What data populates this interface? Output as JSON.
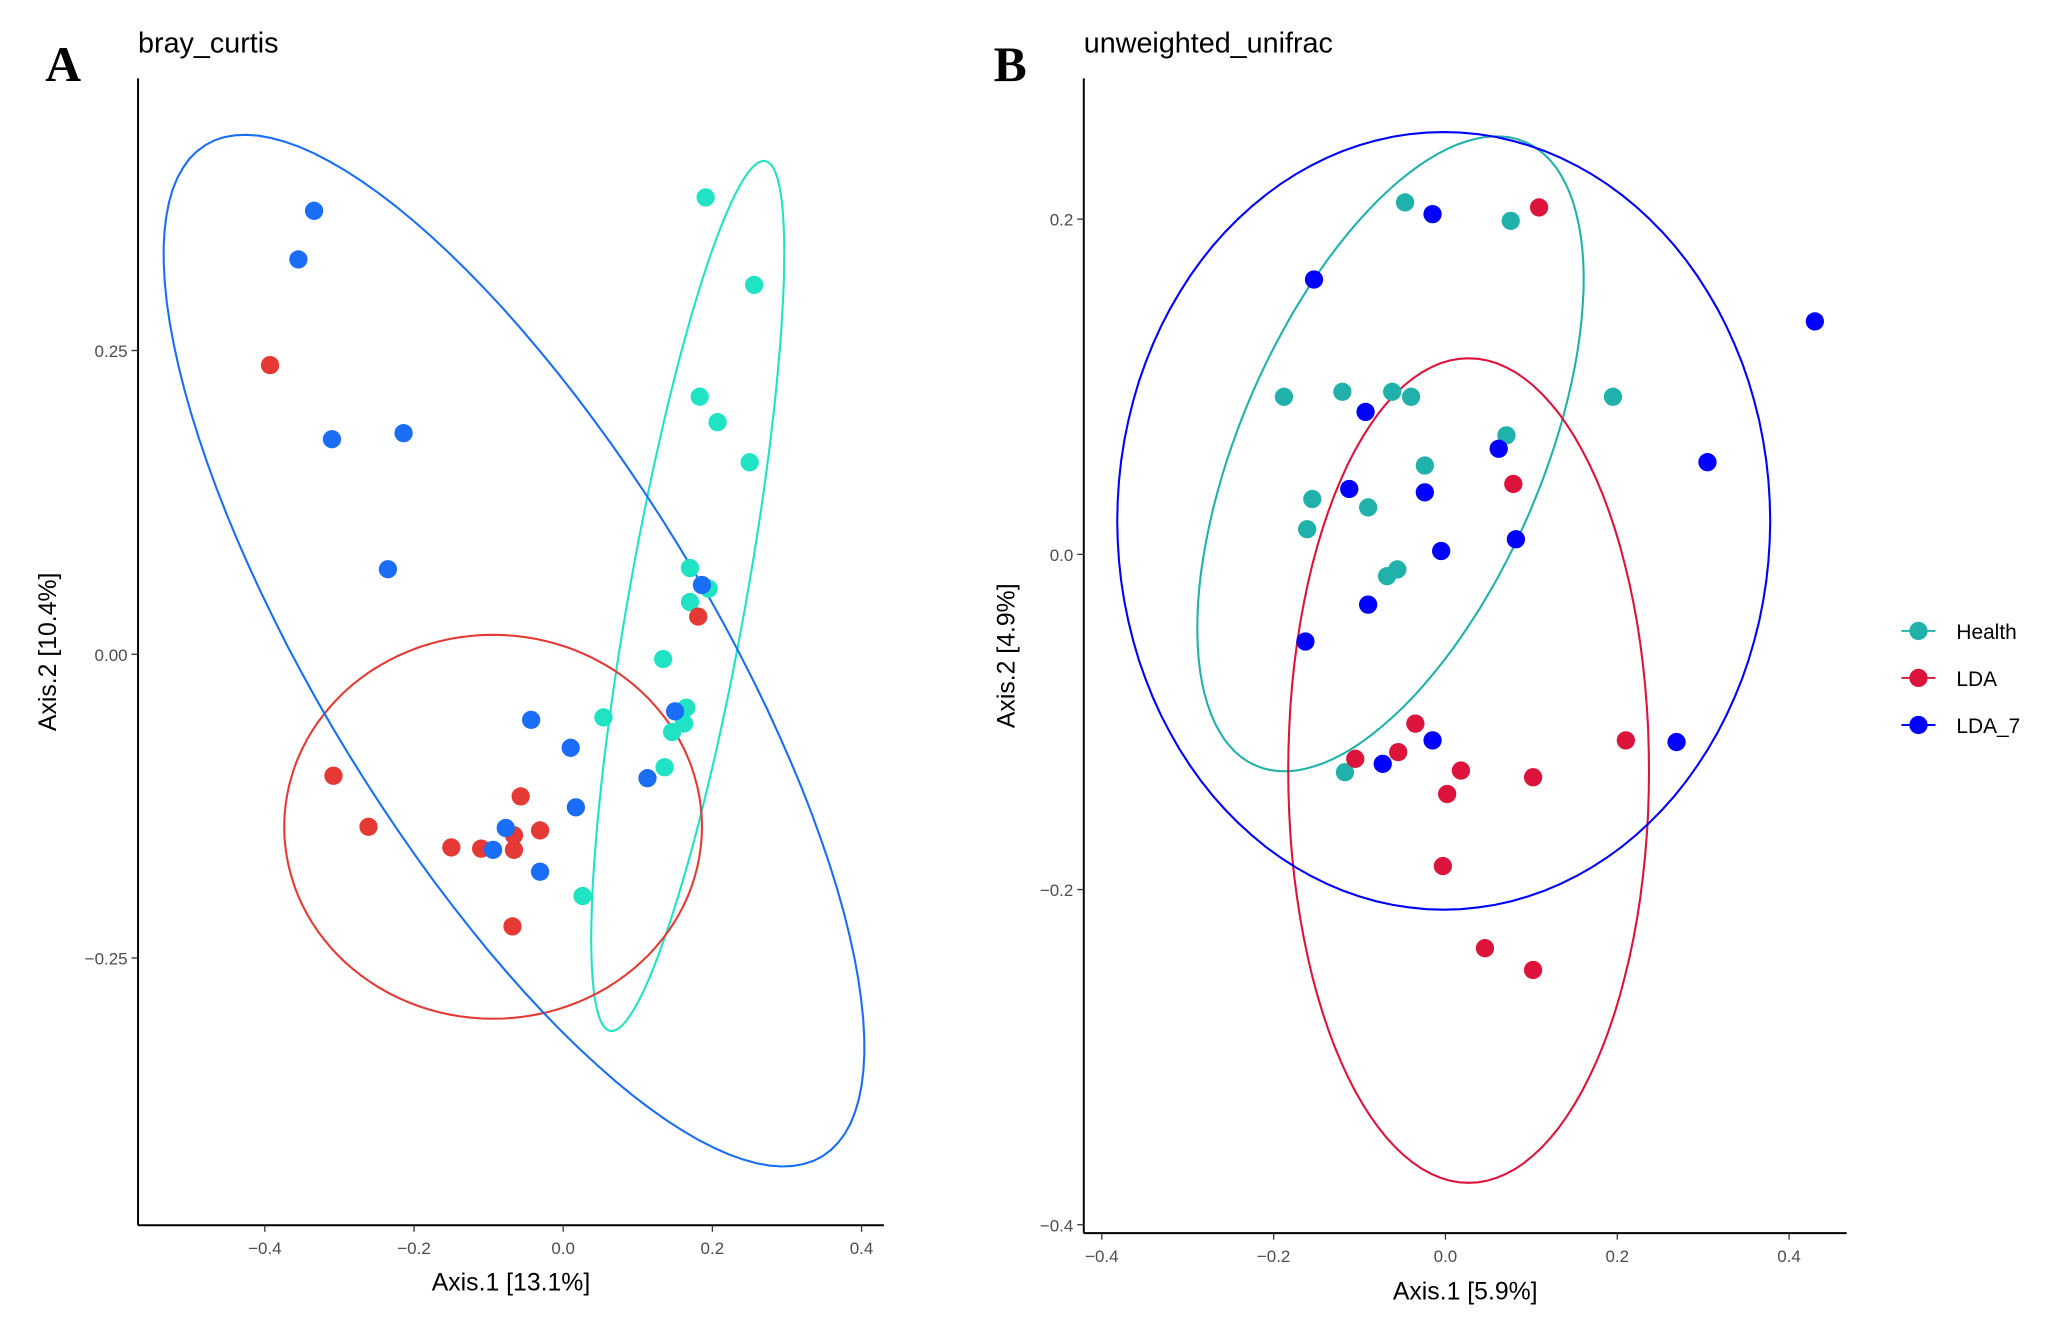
{
  "chart_data": [
    {
      "type": "scatter",
      "panel_label": "A",
      "title": "bray_curtis",
      "xlabel": "Axis.1 [13.1%]",
      "ylabel": "Axis.2 [10.4%]",
      "xticks": [
        -0.4,
        -0.2,
        0.0,
        0.2,
        0.4
      ],
      "xtick_labels": [
        "−0.4",
        "−0.2",
        "0.0",
        "0.2",
        "0.4"
      ],
      "yticks": [
        0.25,
        0.0,
        -0.25
      ],
      "ytick_labels": [
        "0.25",
        "0.00",
        "−0.25"
      ],
      "xlim": [
        -0.57,
        0.43
      ],
      "ylim": [
        -0.47,
        0.474
      ],
      "grid": false,
      "series": [
        {
          "name": "Health",
          "color": "#1fe3c3",
          "points": [
            [
              0.191,
              0.376
            ],
            [
              0.256,
              0.304
            ],
            [
              0.183,
              0.212
            ],
            [
              0.207,
              0.191
            ],
            [
              0.25,
              0.158
            ],
            [
              0.17,
              0.071
            ],
            [
              0.195,
              0.054
            ],
            [
              0.17,
              0.043
            ],
            [
              0.134,
              -0.004
            ],
            [
              0.165,
              -0.044
            ],
            [
              0.162,
              -0.057
            ],
            [
              0.146,
              -0.064
            ],
            [
              0.136,
              -0.093
            ],
            [
              0.054,
              -0.052
            ],
            [
              0.026,
              -0.199
            ]
          ],
          "ellipse": {
            "center": [
              0.167,
              0.048
            ],
            "u": [
              0.104,
              0.358
            ],
            "v": [
              0.077,
              -0.009
            ]
          }
        },
        {
          "name": "LDA",
          "color": "#e53935",
          "points": [
            [
              -0.393,
              0.238
            ],
            [
              -0.308,
              -0.1
            ],
            [
              -0.261,
              -0.142
            ],
            [
              -0.15,
              -0.159
            ],
            [
              -0.11,
              -0.16
            ],
            [
              -0.066,
              -0.161
            ],
            [
              -0.066,
              -0.149
            ],
            [
              -0.057,
              -0.117
            ],
            [
              -0.031,
              -0.145
            ],
            [
              -0.068,
              -0.224
            ],
            [
              0.181,
              0.031
            ]
          ],
          "ellipse": {
            "center": [
              -0.094,
              -0.142
            ],
            "u": [
              0.28,
              0
            ],
            "v": [
              0,
              0.158
            ]
          }
        },
        {
          "name": "LDA_7",
          "color": "#1a6ef5",
          "points": [
            [
              -0.334,
              0.365
            ],
            [
              -0.355,
              0.325
            ],
            [
              -0.31,
              0.177
            ],
            [
              -0.214,
              0.182
            ],
            [
              -0.235,
              0.07
            ],
            [
              -0.043,
              -0.054
            ],
            [
              0.01,
              -0.077
            ],
            [
              0.017,
              -0.126
            ],
            [
              -0.077,
              -0.143
            ],
            [
              -0.094,
              -0.161
            ],
            [
              -0.031,
              -0.179
            ],
            [
              0.113,
              -0.102
            ],
            [
              0.15,
              -0.047
            ],
            [
              0.186,
              0.057
            ]
          ],
          "ellipse": {
            "center": [
              -0.066,
              0.003
            ],
            "u": [
              0.414,
              -0.416
            ],
            "v": [
              -0.222,
              -0.085
            ]
          }
        }
      ]
    },
    {
      "type": "scatter",
      "panel_label": "B",
      "title": "unweighted_unifrac",
      "xlabel": "Axis.1 [5.9%]",
      "ylabel": "Axis.2 [4.9%]",
      "xticks": [
        -0.4,
        -0.2,
        0.0,
        0.2,
        0.4
      ],
      "xtick_labels": [
        "−0.4",
        "−0.2",
        "0.0",
        "0.2",
        "0.4"
      ],
      "yticks": [
        0.2,
        0.0,
        -0.2,
        -0.4
      ],
      "ytick_labels": [
        "0.2",
        "0.0",
        "−0.2",
        "−0.4"
      ],
      "xlim": [
        -0.421,
        0.467
      ],
      "ylim": [
        -0.405,
        0.284
      ],
      "grid": false,
      "legend": {
        "position": "right",
        "entries": [
          "Health",
          "LDA",
          "LDA_7"
        ]
      },
      "series": [
        {
          "name": "Health",
          "color": "#20b2aa",
          "points": [
            [
              -0.047,
              0.21
            ],
            [
              0.076,
              0.199
            ],
            [
              -0.188,
              0.094
            ],
            [
              -0.12,
              0.097
            ],
            [
              -0.062,
              0.097
            ],
            [
              -0.04,
              0.094
            ],
            [
              0.195,
              0.094
            ],
            [
              0.071,
              0.071
            ],
            [
              -0.024,
              0.053
            ],
            [
              -0.155,
              0.033
            ],
            [
              -0.09,
              0.028
            ],
            [
              -0.161,
              0.015
            ],
            [
              -0.068,
              -0.013
            ],
            [
              -0.056,
              -0.009
            ],
            [
              -0.117,
              -0.13
            ]
          ],
          "ellipse": {
            "center": [
              -0.064,
              0.06
            ],
            "u": [
              0.157,
              0.186
            ],
            "v": [
              0.161,
              -0.036
            ]
          }
        },
        {
          "name": "LDA",
          "color": "#dc143c",
          "points": [
            [
              0.109,
              0.207
            ],
            [
              0.079,
              0.042
            ],
            [
              -0.035,
              -0.101
            ],
            [
              -0.055,
              -0.118
            ],
            [
              -0.105,
              -0.122
            ],
            [
              0.018,
              -0.129
            ],
            [
              0.002,
              -0.143
            ],
            [
              0.102,
              -0.133
            ],
            [
              0.21,
              -0.111
            ],
            [
              -0.003,
              -0.186
            ],
            [
              0.046,
              -0.235
            ],
            [
              0.102,
              -0.248
            ]
          ],
          "ellipse": {
            "center": [
              0.027,
              -0.129
            ],
            "u": [
              0.21,
              0
            ],
            "v": [
              0,
              0.246
            ]
          }
        },
        {
          "name": "LDA_7",
          "color": "#0000ff",
          "points": [
            [
              -0.015,
              0.203
            ],
            [
              -0.153,
              0.164
            ],
            [
              0.43,
              0.139
            ],
            [
              -0.093,
              0.085
            ],
            [
              0.062,
              0.063
            ],
            [
              0.305,
              0.055
            ],
            [
              -0.112,
              0.039
            ],
            [
              -0.024,
              0.037
            ],
            [
              0.082,
              0.009
            ],
            [
              -0.005,
              0.002
            ],
            [
              -0.09,
              -0.03
            ],
            [
              -0.163,
              -0.052
            ],
            [
              -0.015,
              -0.111
            ],
            [
              -0.073,
              -0.125
            ],
            [
              0.269,
              -0.112
            ]
          ],
          "ellipse": {
            "center": [
              -0.002,
              0.02
            ],
            "u": [
              0.38,
              0
            ],
            "v": [
              0,
              0.232
            ]
          }
        }
      ]
    }
  ]
}
